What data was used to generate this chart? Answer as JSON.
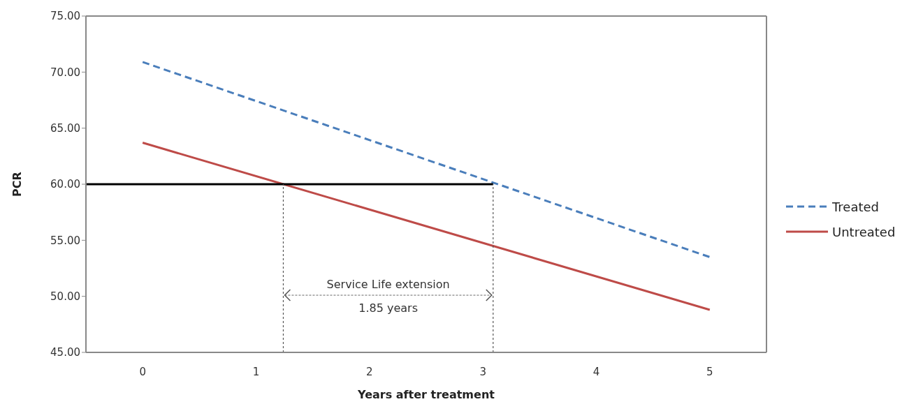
{
  "chart_data": {
    "type": "line",
    "xlabel": "Years after treatment",
    "ylabel": "PCR",
    "x": [
      0,
      5
    ],
    "series": [
      {
        "name": "Treated",
        "color": "#4a7ebb",
        "values": [
          70.9,
          53.5
        ],
        "line_style": "dashed"
      },
      {
        "name": "Untreated",
        "color": "#be4b48",
        "values": [
          63.7,
          48.8
        ],
        "line_style": "solid"
      },
      {
        "color": "#000000",
        "x": [
          -0.5,
          3.09
        ],
        "values": [
          60,
          60
        ],
        "line_style": "solid"
      },
      {
        "color": "#555555",
        "x": [
          1.24,
          1.24
        ],
        "values": [
          45,
          60
        ],
        "line_style": "dotted"
      },
      {
        "color": "#555555",
        "x": [
          3.09,
          3.09
        ],
        "values": [
          45,
          60
        ],
        "line_style": "dotted"
      }
    ],
    "xlim": [
      -0.5,
      5.5
    ],
    "xticks": [
      0,
      1,
      2,
      3,
      4,
      5
    ],
    "ylim": [
      45,
      75
    ],
    "yticks": [
      {
        "value": 45,
        "label": "45.00"
      },
      {
        "value": 50,
        "label": "50.00"
      },
      {
        "value": 55,
        "label": "55.00"
      },
      {
        "value": 60,
        "label": "60.00"
      },
      {
        "value": 65,
        "label": "65.00"
      },
      {
        "value": 70,
        "label": "70.00"
      },
      {
        "value": 75,
        "label": "75.00"
      }
    ],
    "annotations": [
      "Service Life extension",
      "1.85 years"
    ],
    "legend": "right",
    "grid": false,
    "marker": "none"
  }
}
